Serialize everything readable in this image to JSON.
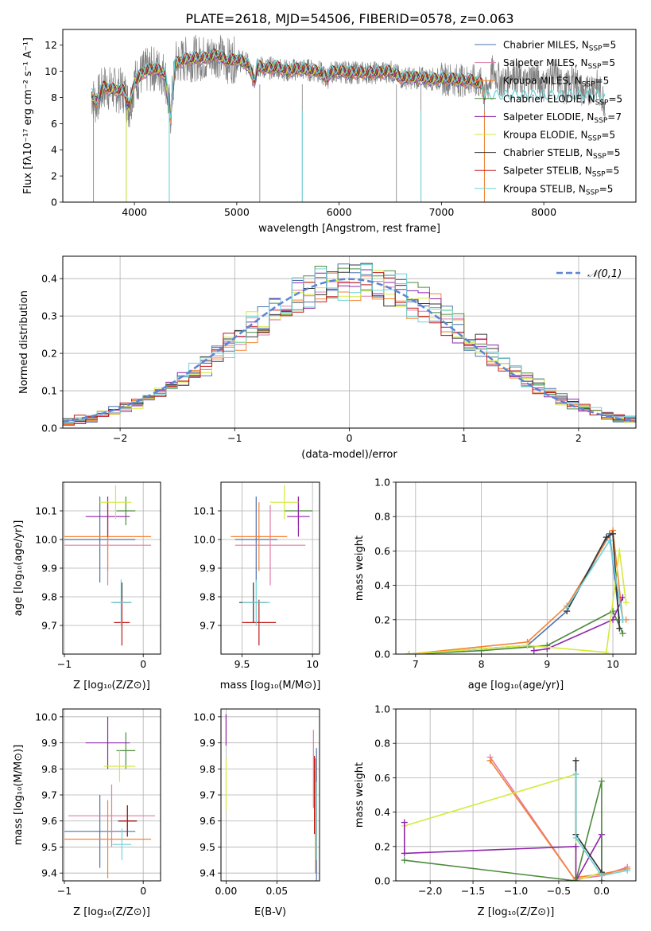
{
  "figure": {
    "title": "PLATE=2618, MJD=54506, FIBERID=0578, z=0.063"
  },
  "models": [
    {
      "name": "Chabrier MILES",
      "nssp": "5",
      "color": "#4c72b0"
    },
    {
      "name": "Salpeter MILES",
      "nssp": "5",
      "color": "#e07ca8"
    },
    {
      "name": "Kroupa MILES",
      "nssp": "5",
      "color": "#f58231"
    },
    {
      "name": "Chabrier ELODIE",
      "nssp": "5",
      "color": "#4c8a3c"
    },
    {
      "name": "Salpeter ELODIE",
      "nssp": "7",
      "color": "#8e24aa"
    },
    {
      "name": "Kroupa ELODIE",
      "nssp": "5",
      "color": "#d4ea3c"
    },
    {
      "name": "Chabrier STELIB",
      "nssp": "5",
      "color": "#333333"
    },
    {
      "name": "Salpeter STELIB",
      "nssp": "5",
      "color": "#c01818"
    },
    {
      "name": "Kroupa STELIB",
      "nssp": "5",
      "color": "#6fd3d8"
    }
  ],
  "chart_data": [
    {
      "id": "spectrum",
      "type": "line",
      "title": "PLATE=2618, MJD=54506, FIBERID=0578, z=0.063",
      "xlabel": "wavelength [Angstrom, rest frame]",
      "ylabel": "Flux [fλ10⁻¹⁷ erg cm⁻² s⁻¹ A⁻¹]",
      "xlim": [
        3300,
        8900
      ],
      "ylim": [
        0,
        13.2
      ],
      "xticks": [
        4000,
        5000,
        6000,
        7000,
        8000
      ],
      "yticks": [
        0,
        2,
        4,
        6,
        8,
        10,
        12
      ],
      "data_color": "#808080",
      "model_color": "#6fd3d8",
      "grid": false,
      "legend_position": "upper right",
      "x": [
        3580,
        3620,
        3700,
        3800,
        3900,
        3950,
        4000,
        4100,
        4200,
        4300,
        4350,
        4400,
        4500,
        4600,
        4700,
        4800,
        4861,
        4900,
        5000,
        5100,
        5175,
        5200,
        5300,
        5400,
        5500,
        5600,
        5700,
        5800,
        5890,
        5900,
        6000,
        6100,
        6200,
        6300,
        6400,
        6500,
        6563,
        6600,
        6700,
        6800,
        6900,
        7000,
        7100,
        7200,
        7300,
        7400,
        7420
      ],
      "model": [
        8.2,
        7.6,
        8.8,
        8.6,
        8.5,
        7.2,
        9.2,
        10.0,
        10.2,
        9.8,
        6.4,
        10.6,
        10.9,
        11.0,
        11.0,
        11.3,
        11.0,
        10.8,
        10.9,
        10.6,
        9.3,
        10.4,
        10.2,
        10.3,
        10.0,
        10.2,
        10.1,
        10.0,
        9.4,
        9.9,
        10.0,
        9.9,
        9.9,
        9.9,
        9.9,
        10.0,
        9.7,
        9.5,
        9.5,
        9.5,
        9.4,
        9.4,
        9.4,
        9.3,
        9.3,
        9.0,
        8.0
      ],
      "data": [
        7.5,
        9.6,
        8.0,
        9.8,
        7.0,
        8.6,
        9.5,
        11.2,
        9.2,
        10.5,
        7.0,
        11.6,
        10.2,
        12.1,
        10.3,
        11.9,
        10.5,
        11.2,
        10.1,
        11.0,
        9.0,
        10.8,
        9.6,
        10.9,
        9.5,
        10.7,
        9.6,
        10.4,
        9.2,
        10.3,
        9.6,
        10.3,
        9.5,
        10.2,
        9.6,
        10.2,
        9.6,
        9.9,
        9.2,
        9.8,
        9.1,
        9.6,
        9.2,
        9.5,
        9.0,
        9.3,
        8.5
      ],
      "data_tail": {
        "x": [
          7500,
          7600,
          7700,
          7800,
          7900,
          8000,
          8100,
          8200,
          8300,
          8400,
          8500,
          8600
        ],
        "y": [
          9.6,
          8.7,
          9.5,
          8.6,
          9.3,
          8.5,
          9.4,
          8.2,
          9.0,
          7.8,
          8.8,
          7.2
        ]
      }
    },
    {
      "id": "residuals",
      "type": "line",
      "xlabel": "(data-model)/error",
      "ylabel": "Normed distribution",
      "xlim": [
        -2.5,
        2.5
      ],
      "ylim": [
        0,
        0.46
      ],
      "xticks": [
        -2,
        -1,
        0,
        1,
        2
      ],
      "yticks": [
        0.0,
        0.1,
        0.2,
        0.3,
        0.4
      ],
      "grid": true,
      "legend": "𝒩(0,1)",
      "legend_position": "upper right",
      "curve_color": "#5b84d4",
      "bin_width": 0.1
    },
    {
      "id": "z-age",
      "type": "scatter",
      "xlabel": "Z [log₁₀(Z/Z⊙)]",
      "ylabel": "age  [log₁₀(age/yr)]",
      "xlim": [
        -1.02,
        0.22
      ],
      "ylim": [
        9.6,
        10.2
      ],
      "xticks": [
        -1,
        0
      ],
      "yticks": [
        9.7,
        9.8,
        9.9,
        10.0,
        10.1
      ],
      "grid": true,
      "points": [
        {
          "model": 0,
          "x": -0.55,
          "xerr": 0.45,
          "y": 10.0,
          "yerr": 0.15
        },
        {
          "model": 1,
          "x": -0.45,
          "xerr": 0.55,
          "y": 9.98,
          "yerr": 0.14
        },
        {
          "model": 2,
          "x": -0.45,
          "xerr": 0.55,
          "y": 10.01,
          "yerr": 0.12
        },
        {
          "model": 3,
          "x": -0.22,
          "xerr": 0.12,
          "y": 10.1,
          "yerr": 0.05
        },
        {
          "model": 4,
          "x": -0.45,
          "xerr": 0.28,
          "y": 10.08,
          "yerr": 0.07
        },
        {
          "model": 5,
          "x": -0.35,
          "xerr": 0.2,
          "y": 10.13,
          "yerr": 0.06
        },
        {
          "model": 6,
          "x": -0.27,
          "xerr": 0.12,
          "y": 9.78,
          "yerr": 0.07
        },
        {
          "model": 7,
          "x": -0.27,
          "xerr": 0.1,
          "y": 9.71,
          "yerr": 0.08
        },
        {
          "model": 8,
          "x": -0.28,
          "xerr": 0.13,
          "y": 9.78,
          "yerr": 0.08
        }
      ]
    },
    {
      "id": "mass-age",
      "type": "scatter",
      "xlabel": "mass [log₁₀(M/M⊙)]",
      "ylabel": "",
      "xlim": [
        9.35,
        10.05
      ],
      "ylim": [
        9.6,
        10.2
      ],
      "xticks": [
        9.5,
        10.0
      ],
      "yticks": [
        9.7,
        9.8,
        9.9,
        10.0,
        10.1
      ],
      "grid": true,
      "points": [
        {
          "model": 0,
          "x": 9.6,
          "xerr": 0.15,
          "y": 10.0,
          "yerr": 0.15
        },
        {
          "model": 1,
          "x": 9.7,
          "xerr": 0.25,
          "y": 9.98,
          "yerr": 0.14
        },
        {
          "model": 2,
          "x": 9.62,
          "xerr": 0.2,
          "y": 10.01,
          "yerr": 0.12
        },
        {
          "model": 3,
          "x": 9.9,
          "xerr": 0.1,
          "y": 10.1,
          "yerr": 0.05
        },
        {
          "model": 4,
          "x": 9.9,
          "xerr": 0.08,
          "y": 10.08,
          "yerr": 0.07
        },
        {
          "model": 5,
          "x": 9.8,
          "xerr": 0.1,
          "y": 10.13,
          "yerr": 0.06
        },
        {
          "model": 6,
          "x": 9.58,
          "xerr": 0.1,
          "y": 9.78,
          "yerr": 0.07
        },
        {
          "model": 7,
          "x": 9.62,
          "xerr": 0.12,
          "y": 9.71,
          "yerr": 0.08
        },
        {
          "model": 8,
          "x": 9.6,
          "xerr": 0.1,
          "y": 9.78,
          "yerr": 0.08
        }
      ]
    },
    {
      "id": "age-weight",
      "type": "line",
      "xlabel": "age  [log₁₀(age/yr)]",
      "ylabel": "mass weight",
      "xlim": [
        6.7,
        10.35
      ],
      "ylim": [
        0,
        1.0
      ],
      "xticks": [
        7,
        8,
        9,
        10
      ],
      "yticks": [
        0.0,
        0.2,
        0.4,
        0.6,
        0.8,
        1.0
      ],
      "grid": true,
      "series": [
        {
          "model": 0,
          "x": [
            6.9,
            8.7,
            9.3,
            9.95,
            10.1,
            10.15
          ],
          "y": [
            0.0,
            0.05,
            0.25,
            0.7,
            0.2,
            0.2
          ]
        },
        {
          "model": 2,
          "x": [
            6.9,
            8.7,
            9.3,
            10.0,
            10.15,
            10.2
          ],
          "y": [
            0.0,
            0.07,
            0.28,
            0.72,
            0.2,
            0.2
          ]
        },
        {
          "model": 3,
          "x": [
            6.9,
            8.0,
            9.0,
            10.0,
            10.15
          ],
          "y": [
            0.0,
            0.02,
            0.05,
            0.25,
            0.12
          ]
        },
        {
          "model": 4,
          "x": [
            8.8,
            9.0,
            10.0,
            10.15
          ],
          "y": [
            0.02,
            0.03,
            0.2,
            0.33
          ]
        },
        {
          "model": 5,
          "x": [
            6.9,
            8.7,
            9.9,
            10.1,
            10.2
          ],
          "y": [
            0.0,
            0.05,
            0.01,
            0.6,
            0.3
          ]
        },
        {
          "model": 6,
          "x": [
            9.3,
            9.9,
            10.0,
            10.1
          ],
          "y": [
            0.25,
            0.68,
            0.7,
            0.15
          ]
        },
        {
          "model": 8,
          "x": [
            9.3,
            9.95,
            10.15
          ],
          "y": [
            0.27,
            0.66,
            0.2
          ]
        }
      ]
    },
    {
      "id": "z-mass",
      "type": "scatter",
      "xlabel": "Z [log₁₀(Z/Z⊙)]",
      "ylabel": "mass [log₁₀(M/M⊙)]",
      "xlim": [
        -1.02,
        0.22
      ],
      "ylim": [
        9.37,
        10.03
      ],
      "xticks": [
        -1,
        0
      ],
      "yticks": [
        9.4,
        9.5,
        9.6,
        9.7,
        9.8,
        9.9,
        10.0
      ],
      "grid": true,
      "points": [
        {
          "model": 0,
          "x": -0.55,
          "xerr": 0.45,
          "y": 9.56,
          "yerr": 0.14
        },
        {
          "model": 1,
          "x": -0.4,
          "xerr": 0.55,
          "y": 9.62,
          "yerr": 0.12
        },
        {
          "model": 2,
          "x": -0.45,
          "xerr": 0.55,
          "y": 9.53,
          "yerr": 0.15
        },
        {
          "model": 3,
          "x": -0.22,
          "xerr": 0.12,
          "y": 9.87,
          "yerr": 0.07
        },
        {
          "model": 4,
          "x": -0.45,
          "xerr": 0.28,
          "y": 9.9,
          "yerr": 0.1
        },
        {
          "model": 5,
          "x": -0.3,
          "xerr": 0.2,
          "y": 9.81,
          "yerr": 0.06
        },
        {
          "model": 6,
          "x": -0.2,
          "xerr": 0.12,
          "y": 9.6,
          "yerr": 0.06
        },
        {
          "model": 7,
          "x": -0.2,
          "xerr": 0.1,
          "y": 9.6,
          "yerr": 0.06
        },
        {
          "model": 8,
          "x": -0.27,
          "xerr": 0.12,
          "y": 9.51,
          "yerr": 0.06
        }
      ]
    },
    {
      "id": "ebv-mass",
      "type": "scatter",
      "xlabel": "E(B-V)",
      "ylabel": "",
      "xlim": [
        -0.005,
        0.092
      ],
      "ylim": [
        9.37,
        10.03
      ],
      "xticks": [
        0.0,
        0.05
      ],
      "xticklabels": [
        "0.00",
        "0.05"
      ],
      "yticks": [
        9.4,
        9.5,
        9.6,
        9.7,
        9.8,
        9.9,
        10.0
      ],
      "grid": true,
      "points": [
        {
          "model": 4,
          "x": 0.0,
          "xerr": 0.0,
          "y": 9.95,
          "yerr": 0.06
        },
        {
          "model": 5,
          "x": 0.0,
          "xerr": 0.0,
          "y": 9.74,
          "yerr": 0.1
        },
        {
          "model": 1,
          "x": 0.086,
          "xerr": 0.0,
          "y": 9.8,
          "yerr": 0.15
        },
        {
          "model": 7,
          "x": 0.087,
          "xerr": 0.0,
          "y": 9.7,
          "yerr": 0.15
        },
        {
          "model": 2,
          "x": 0.088,
          "xerr": 0.0,
          "y": 9.62,
          "yerr": 0.22
        },
        {
          "model": 0,
          "x": 0.089,
          "xerr": 0.0,
          "y": 9.6,
          "yerr": 0.28
        },
        {
          "model": 8,
          "x": 0.089,
          "xerr": 0.0,
          "y": 9.6,
          "yerr": 0.15
        }
      ]
    },
    {
      "id": "z-weight",
      "type": "line",
      "xlabel": "Z [log₁₀(Z/Z⊙)]",
      "ylabel": "mass weight",
      "xlim": [
        -2.4,
        0.4
      ],
      "ylim": [
        0,
        1.0
      ],
      "xticks": [
        -2.0,
        -1.5,
        -1.0,
        -0.5,
        0.0
      ],
      "xticklabels": [
        "−2.0",
        "−1.5",
        "−1.0",
        "−0.5",
        "0.0"
      ],
      "yticks": [
        0.0,
        0.2,
        0.4,
        0.6,
        0.8,
        1.0
      ],
      "grid": true,
      "series": [
        {
          "model": 1,
          "x": [
            -1.3,
            -0.3,
            -0.3,
            0.0,
            0.3
          ],
          "y": [
            0.72,
            0.0,
            0.01,
            0.03,
            0.08
          ]
        },
        {
          "model": 2,
          "x": [
            -1.3,
            -0.3,
            -0.3,
            0.0,
            0.3
          ],
          "y": [
            0.7,
            0.0,
            0.02,
            0.04,
            0.07
          ]
        },
        {
          "model": 5,
          "x": [
            -2.3,
            -0.3,
            -0.3,
            0.0
          ],
          "y": [
            0.32,
            0.62,
            0.0,
            0.05
          ]
        },
        {
          "model": 4,
          "x": [
            -2.3,
            -2.3,
            -0.3,
            -0.3,
            0.0,
            0.0
          ],
          "y": [
            0.34,
            0.16,
            0.2,
            0.0,
            0.27,
            0.0
          ]
        },
        {
          "model": 3,
          "x": [
            -2.3,
            -0.3,
            0.0,
            0.0
          ],
          "y": [
            0.12,
            0.0,
            0.58,
            0.0
          ]
        },
        {
          "model": 6,
          "x": [
            -0.3,
            -0.3,
            0.0
          ],
          "y": [
            0.7,
            0.27,
            0.05
          ]
        },
        {
          "model": 8,
          "x": [
            -0.3,
            -0.3,
            0.0,
            0.3
          ],
          "y": [
            0.62,
            0.25,
            0.03,
            0.06
          ]
        }
      ]
    }
  ]
}
